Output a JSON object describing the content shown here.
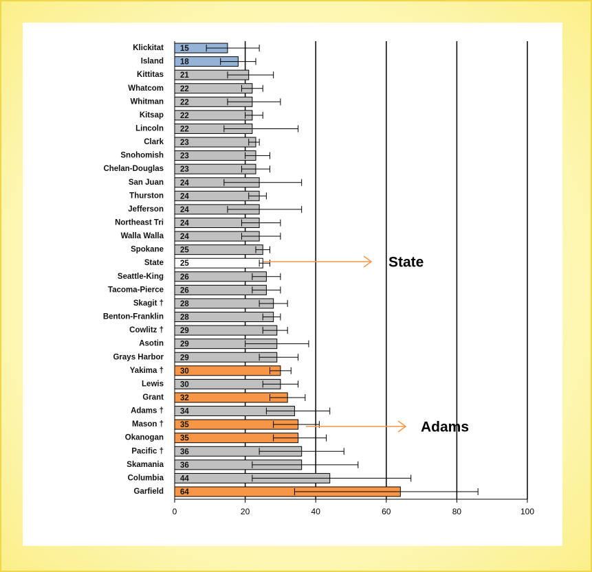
{
  "chart_data": {
    "type": "bar",
    "categories": [
      "Klickitat",
      "Island",
      "Kittitas",
      "Whatcom",
      "Whitman",
      "Kitsap",
      "Lincoln",
      "Clark",
      "Snohomish",
      "Chelan-Douglas",
      "San Juan",
      "Thurston",
      "Jefferson",
      "Northeast Tri",
      "Walla Walla",
      "Spokane",
      "State",
      "Seattle-King",
      "Tacoma-Pierce",
      "Skagit †",
      "Benton-Franklin",
      "Cowlitz †",
      "Asotin",
      "Grays Harbor",
      "Yakima †",
      "Lewis",
      "Grant",
      "Adams †",
      "Mason †",
      "Okanogan",
      "Pacific †",
      "Skamania",
      "Columbia",
      "Garfield"
    ],
    "values": [
      15,
      18,
      21,
      22,
      22,
      22,
      22,
      23,
      23,
      23,
      24,
      24,
      24,
      24,
      24,
      25,
      25,
      26,
      26,
      28,
      28,
      29,
      29,
      29,
      30,
      30,
      32,
      34,
      35,
      35,
      36,
      36,
      44,
      64
    ],
    "ci_low": [
      9,
      13,
      15,
      19,
      15,
      20,
      14,
      21,
      20,
      19,
      14,
      21,
      15,
      19,
      19,
      23,
      24,
      22,
      22,
      24,
      25,
      25,
      20,
      24,
      27,
      25,
      27,
      26,
      28,
      28,
      24,
      22,
      22,
      34
    ],
    "ci_high": [
      24,
      23,
      28,
      25,
      30,
      25,
      35,
      24,
      27,
      27,
      36,
      26,
      36,
      30,
      30,
      27,
      27,
      30,
      30,
      32,
      30,
      32,
      38,
      35,
      33,
      35,
      37,
      44,
      41,
      43,
      48,
      52,
      67,
      86
    ],
    "colors": [
      "#95b3d7",
      "#95b3d7",
      "#c0c0c0",
      "#c0c0c0",
      "#c0c0c0",
      "#c0c0c0",
      "#c0c0c0",
      "#c0c0c0",
      "#c0c0c0",
      "#c0c0c0",
      "#c0c0c0",
      "#c0c0c0",
      "#c0c0c0",
      "#c0c0c0",
      "#c0c0c0",
      "#c0c0c0",
      "#ffffff",
      "#c0c0c0",
      "#c0c0c0",
      "#c0c0c0",
      "#c0c0c0",
      "#c0c0c0",
      "#c0c0c0",
      "#c0c0c0",
      "#f79646",
      "#c0c0c0",
      "#f79646",
      "#c0c0c0",
      "#f79646",
      "#f79646",
      "#c0c0c0",
      "#c0c0c0",
      "#c0c0c0",
      "#f79646"
    ],
    "xlim": [
      0,
      100
    ],
    "xticks": [
      0,
      20,
      40,
      60,
      80,
      100
    ],
    "grid": true,
    "annotations": [
      {
        "text": "State",
        "color": "#f79646"
      },
      {
        "text": "Adams",
        "color": "#f79646"
      }
    ]
  }
}
